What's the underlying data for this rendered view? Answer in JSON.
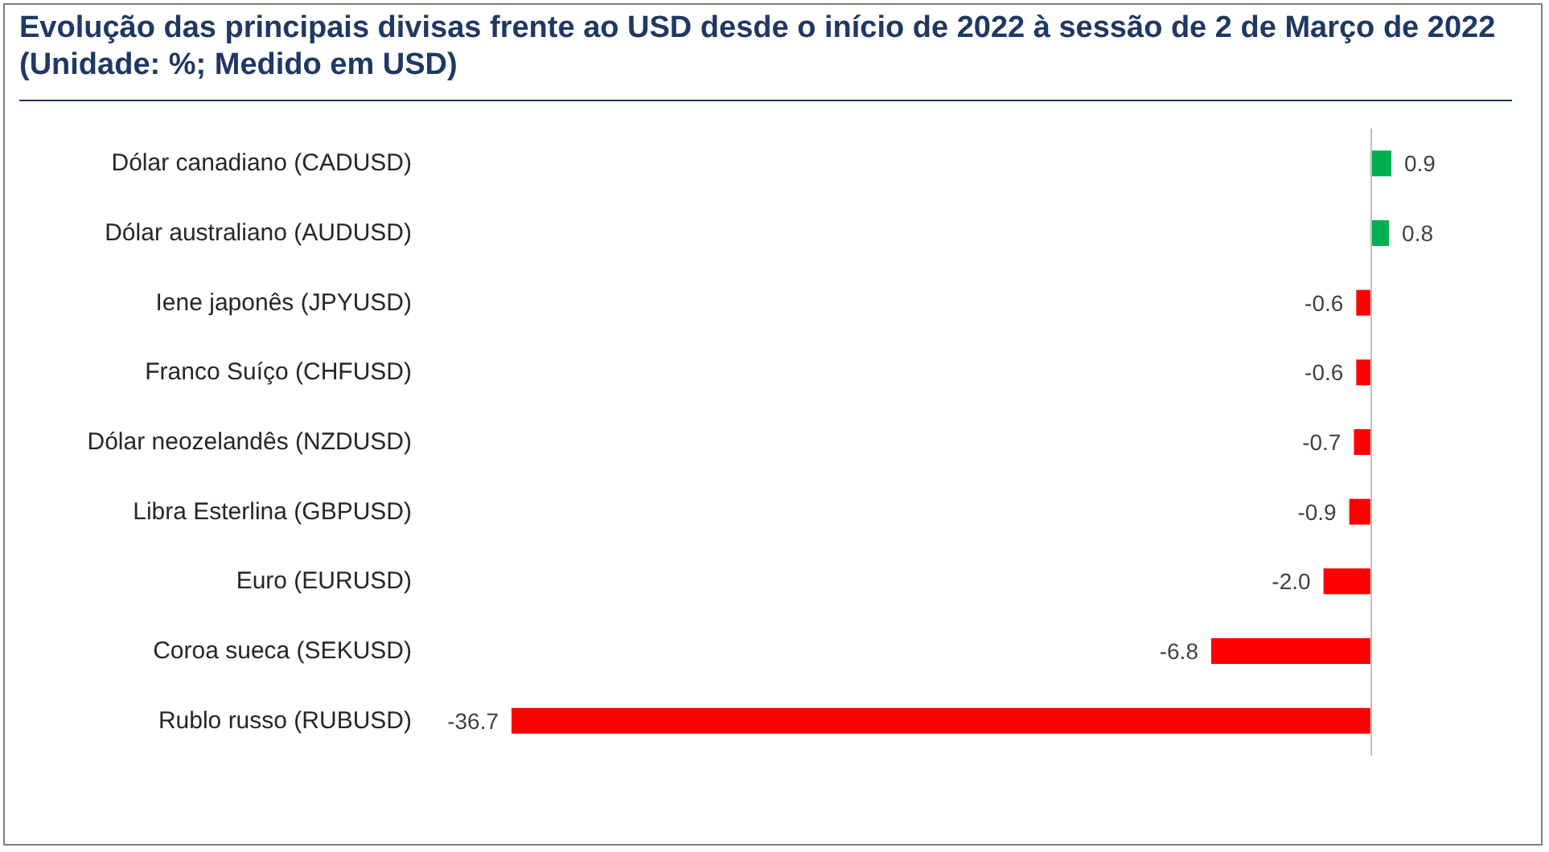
{
  "chart_data": {
    "type": "bar",
    "orientation": "horizontal",
    "title": "Evolução das principais divisas frente ao USD desde o início de 2022 à sessão de 2 de Março de 2022 (Unidade: %; Medido em USD)",
    "categories": [
      "Dólar canadiano (CADUSD)",
      "Dólar australiano (AUDUSD)",
      "Iene japonês (JPYUSD)",
      "Franco Suíço (CHFUSD)",
      "Dólar neozelandês (NZDUSD)",
      "Libra Esterlina (GBPUSD)",
      "Euro (EURUSD)",
      "Coroa sueca (SEKUSD)",
      "Rublo russo (RUBUSD)"
    ],
    "values": [
      0.9,
      0.8,
      -0.6,
      -0.6,
      -0.7,
      -0.9,
      -2.0,
      -6.8,
      -36.7
    ],
    "colors": [
      "#00b050",
      "#00b050",
      "#ff0000",
      "#ff0000",
      "#ff0000",
      "#ff0000",
      "#ff0000",
      "#ff0000",
      "#ff0000"
    ],
    "value_labels": [
      "0.9",
      "0.8",
      "-0.6",
      "-0.6",
      "-0.7",
      "-0.9",
      "-2.0",
      "-6.8",
      "-36.7"
    ],
    "grid": false
  }
}
